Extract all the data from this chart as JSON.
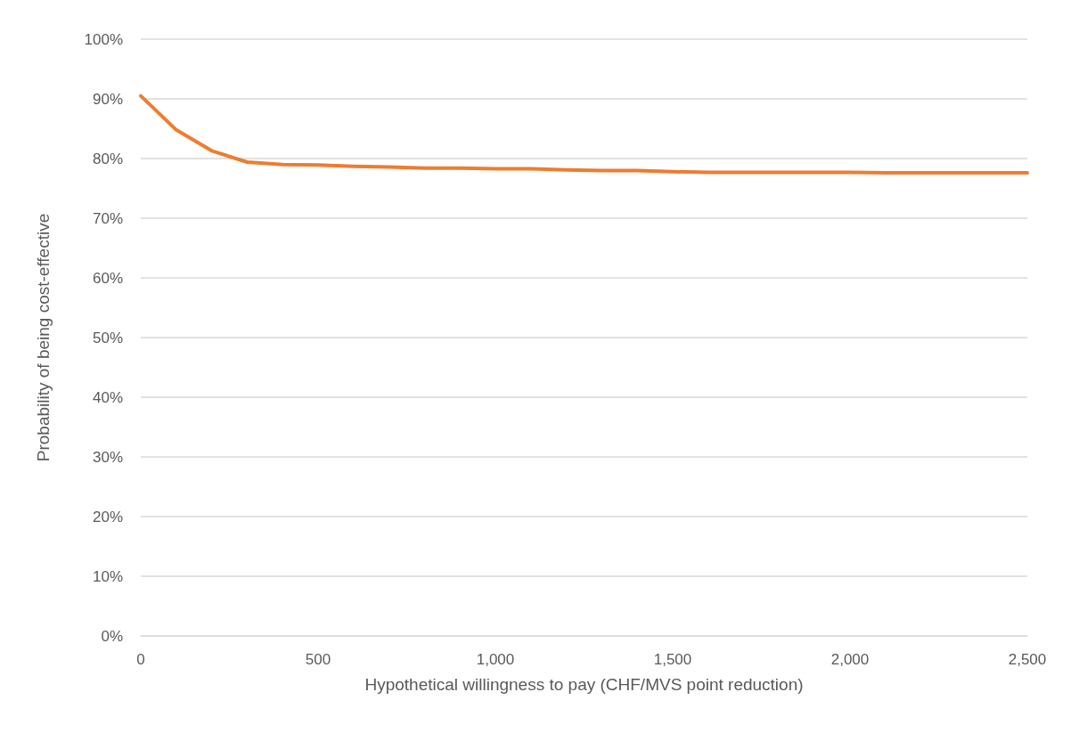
{
  "chart_data": {
    "type": "line",
    "xlabel": "Hypothetical willingness to pay (CHF/MVS point reduction)",
    "ylabel": "Probability of being cost-effective",
    "x": [
      0,
      100,
      200,
      300,
      400,
      500,
      600,
      700,
      800,
      900,
      1000,
      1100,
      1200,
      1300,
      1400,
      1500,
      1600,
      1700,
      1800,
      1900,
      2000,
      2100,
      2200,
      2300,
      2400,
      2500
    ],
    "series": [
      {
        "color": "#ed7d31",
        "values": [
          90.5,
          84.8,
          81.3,
          79.4,
          79.0,
          78.9,
          78.7,
          78.6,
          78.4,
          78.4,
          78.3,
          78.3,
          78.1,
          78.0,
          78.0,
          77.8,
          77.7,
          77.7,
          77.7,
          77.7,
          77.7,
          77.6,
          77.6,
          77.6,
          77.6,
          77.6
        ]
      }
    ],
    "xlim": [
      0,
      2500
    ],
    "xticks": [
      {
        "value": 0,
        "label": "0"
      },
      {
        "value": 500,
        "label": "500"
      },
      {
        "value": 1000,
        "label": "1,000"
      },
      {
        "value": 1500,
        "label": "1,500"
      },
      {
        "value": 2000,
        "label": "2,000"
      },
      {
        "value": 2500,
        "label": "2,500"
      }
    ],
    "ylim": [
      0,
      100
    ],
    "yticks": [
      {
        "value": 0,
        "label": "0%"
      },
      {
        "value": 10,
        "label": "10%"
      },
      {
        "value": 20,
        "label": "20%"
      },
      {
        "value": 30,
        "label": "30%"
      },
      {
        "value": 40,
        "label": "40%"
      },
      {
        "value": 50,
        "label": "50%"
      },
      {
        "value": 60,
        "label": "60%"
      },
      {
        "value": 70,
        "label": "70%"
      },
      {
        "value": 80,
        "label": "80%"
      },
      {
        "value": 90,
        "label": "90%"
      },
      {
        "value": 100,
        "label": "100%"
      }
    ],
    "grid": "y",
    "marker": "none",
    "line_style": "solid"
  }
}
